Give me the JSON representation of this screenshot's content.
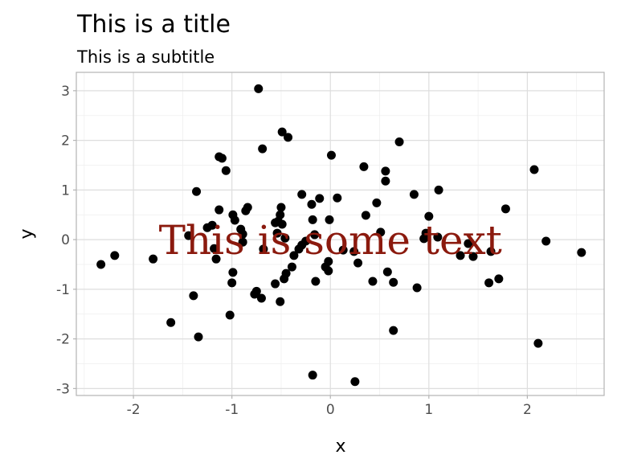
{
  "chart_data": {
    "type": "scatter",
    "title": "This is a title",
    "subtitle": "This is a subtitle",
    "xlabel": "x",
    "ylabel": "y",
    "xlim": [
      -2.58,
      2.78
    ],
    "ylim": [
      -3.14,
      3.37
    ],
    "xticks": [
      -2,
      -1,
      0,
      1,
      2
    ],
    "yticks": [
      -3,
      -2,
      -1,
      0,
      1,
      2,
      3
    ],
    "grid": true,
    "point_color": "#000000",
    "annotation": {
      "text": "This is some text",
      "x": 0,
      "y": 0,
      "color": "#8b1a0e"
    },
    "points": [
      [
        -0.73,
        3.04
      ],
      [
        -0.49,
        2.17
      ],
      [
        -0.43,
        2.06
      ],
      [
        -0.69,
        1.83
      ],
      [
        -1.13,
        1.67
      ],
      [
        -1.1,
        1.64
      ],
      [
        -1.06,
        1.39
      ],
      [
        -1.36,
        0.97
      ],
      [
        0.01,
        1.7
      ],
      [
        0.34,
        1.47
      ],
      [
        0.7,
        1.97
      ],
      [
        0.56,
        1.38
      ],
      [
        0.56,
        1.18
      ],
      [
        2.07,
        1.41
      ],
      [
        0.85,
        0.91
      ],
      [
        1.1,
        1.0
      ],
      [
        -0.29,
        0.91
      ],
      [
        -0.11,
        0.83
      ],
      [
        0.07,
        0.84
      ],
      [
        -0.19,
        0.71
      ],
      [
        0.47,
        0.74
      ],
      [
        0.36,
        0.49
      ],
      [
        1.0,
        0.47
      ],
      [
        -0.5,
        0.65
      ],
      [
        -0.84,
        0.65
      ],
      [
        -0.86,
        0.58
      ],
      [
        -1.13,
        0.6
      ],
      [
        -0.99,
        0.5
      ],
      [
        -0.97,
        0.39
      ],
      [
        -1.2,
        0.29
      ],
      [
        -1.25,
        0.24
      ],
      [
        -0.51,
        0.5
      ],
      [
        -0.53,
        0.37
      ],
      [
        -0.49,
        0.31
      ],
      [
        -0.56,
        0.34
      ],
      [
        -0.18,
        0.4
      ],
      [
        -0.01,
        0.4
      ],
      [
        -0.91,
        0.21
      ],
      [
        -0.89,
        0.11
      ],
      [
        -1.44,
        0.08
      ],
      [
        -0.46,
        0.03
      ],
      [
        -0.54,
        0.13
      ],
      [
        -0.25,
        -0.03
      ],
      [
        -0.16,
        0.1
      ],
      [
        -0.89,
        -0.05
      ],
      [
        0.51,
        0.15
      ],
      [
        0.97,
        0.13
      ],
      [
        1.09,
        0.05
      ],
      [
        0.95,
        0.02
      ],
      [
        1.4,
        -0.08
      ],
      [
        2.19,
        -0.03
      ],
      [
        2.55,
        -0.26
      ],
      [
        0.24,
        -0.24
      ],
      [
        0.13,
        -0.21
      ],
      [
        -0.29,
        -0.11
      ],
      [
        -0.32,
        -0.19
      ],
      [
        -0.37,
        -0.32
      ],
      [
        -0.68,
        -0.19
      ],
      [
        -2.19,
        -0.32
      ],
      [
        -2.33,
        -0.5
      ],
      [
        -1.8,
        -0.39
      ],
      [
        -1.16,
        -0.39
      ],
      [
        -1.18,
        -0.18
      ],
      [
        -0.02,
        -0.44
      ],
      [
        -0.05,
        -0.55
      ],
      [
        -0.02,
        -0.63
      ],
      [
        0.28,
        -0.47
      ],
      [
        -0.39,
        -0.55
      ],
      [
        -0.45,
        -0.68
      ],
      [
        -0.47,
        -0.79
      ],
      [
        -0.56,
        -0.89
      ],
      [
        -0.15,
        -0.84
      ],
      [
        -0.99,
        -0.66
      ],
      [
        -1.0,
        -0.87
      ],
      [
        0.58,
        -0.65
      ],
      [
        0.43,
        -0.84
      ],
      [
        0.64,
        -0.86
      ],
      [
        0.88,
        -0.97
      ],
      [
        1.32,
        -0.32
      ],
      [
        1.45,
        -0.34
      ],
      [
        1.63,
        -0.24
      ],
      [
        1.61,
        -0.87
      ],
      [
        1.71,
        -0.79
      ],
      [
        1.78,
        0.62
      ],
      [
        -1.62,
        -1.67
      ],
      [
        -1.39,
        -1.13
      ],
      [
        -1.34,
        -1.96
      ],
      [
        -1.02,
        -1.52
      ],
      [
        -0.77,
        -1.1
      ],
      [
        -0.7,
        -1.18
      ],
      [
        -0.75,
        -1.04
      ],
      [
        -0.51,
        -1.25
      ],
      [
        0.64,
        -1.83
      ],
      [
        2.11,
        -2.09
      ],
      [
        -0.18,
        -2.73
      ],
      [
        0.25,
        -2.86
      ]
    ]
  }
}
